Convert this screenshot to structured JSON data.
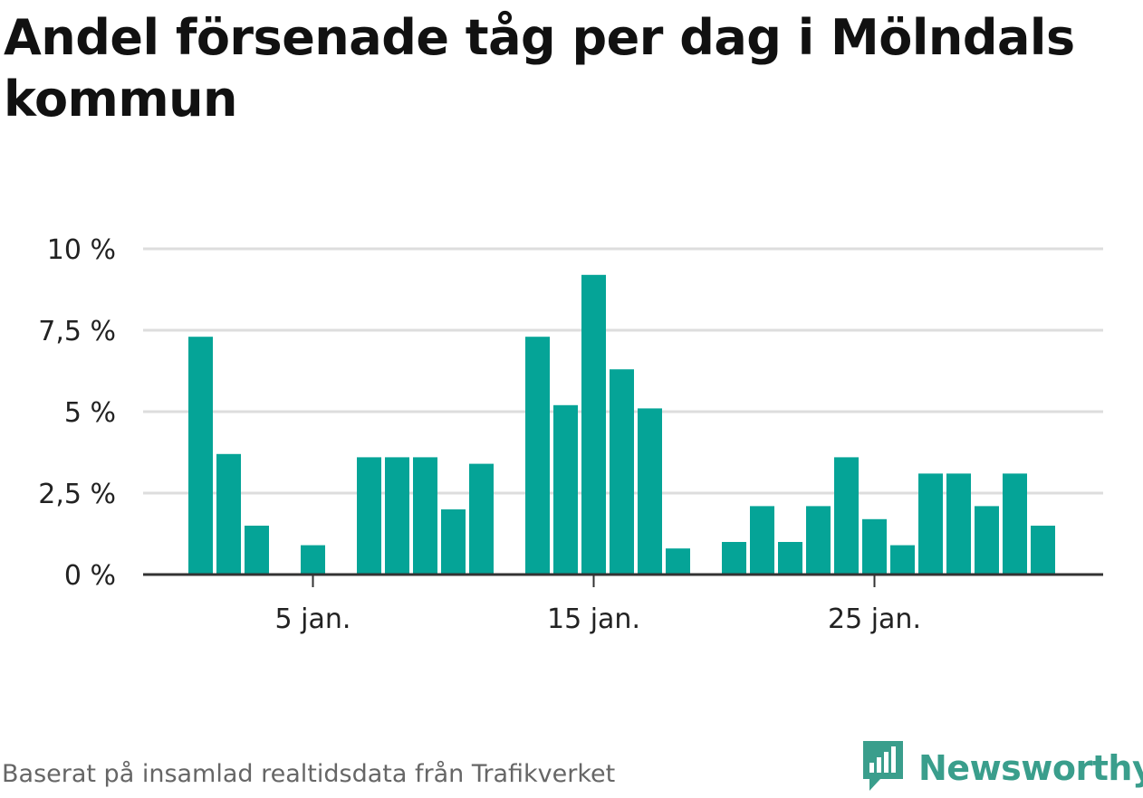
{
  "title": "Andel försenade tåg per dag i Mölndals kommun",
  "footer": {
    "source": "Baserat på insamlad realtidsdata från Trafikverket",
    "brand": "Newsworthy",
    "brand_icon": "newsworthy-logo-icon"
  },
  "colors": {
    "bar": "#05a497",
    "grid": "#dddddd",
    "axis": "#333333",
    "brand": "#3a9e8c"
  },
  "chart_data": {
    "type": "bar",
    "x": [
      1,
      2,
      3,
      4,
      5,
      6,
      7,
      8,
      9,
      10,
      11,
      12,
      13,
      14,
      15,
      16,
      17,
      18,
      19,
      20,
      21,
      22,
      23,
      24,
      25,
      26,
      27,
      28,
      29,
      30,
      31
    ],
    "values": [
      7.3,
      3.7,
      1.5,
      null,
      0.9,
      null,
      3.6,
      3.6,
      3.6,
      2.0,
      3.4,
      null,
      7.3,
      5.2,
      9.2,
      6.3,
      5.1,
      0.8,
      null,
      1.0,
      2.1,
      1.0,
      2.1,
      3.6,
      1.7,
      0.9,
      3.1,
      3.1,
      2.1,
      3.1,
      1.5
    ],
    "x_ticks": [
      {
        "x": 5,
        "label": "5 jan."
      },
      {
        "x": 15,
        "label": "15 jan."
      },
      {
        "x": 25,
        "label": "25 jan."
      }
    ],
    "y_ticks": [
      {
        "value": 0,
        "label": "0 %"
      },
      {
        "value": 2.5,
        "label": "2,5 %"
      },
      {
        "value": 5,
        "label": "5 %"
      },
      {
        "value": 7.5,
        "label": "7,5 %"
      },
      {
        "value": 10,
        "label": "10 %"
      }
    ],
    "ylim": [
      0,
      10
    ],
    "grid": true
  }
}
